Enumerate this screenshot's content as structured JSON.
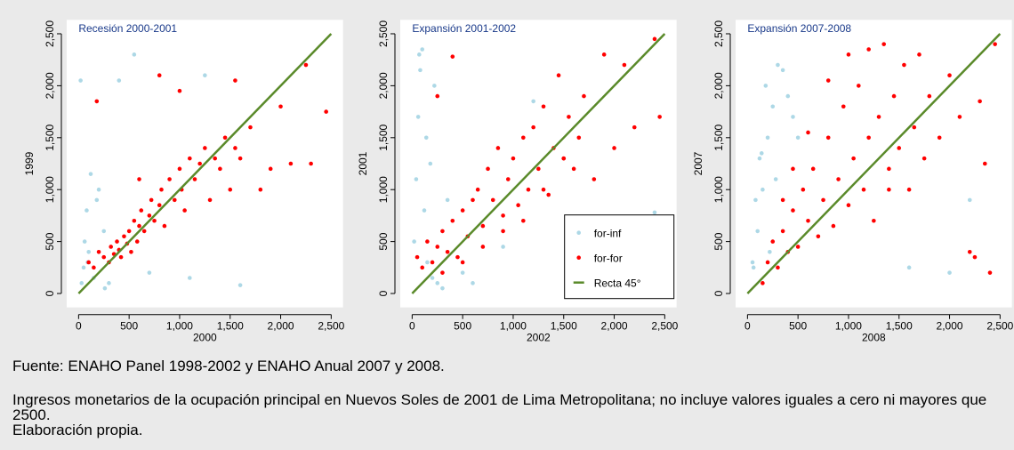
{
  "chart_data": [
    {
      "type": "scatter",
      "title": "Recesión 2000-2001",
      "xlabel": "2000",
      "ylabel": "1999",
      "xlim": [
        -100,
        2600
      ],
      "ylim": [
        -100,
        2600
      ],
      "xticks": [
        0,
        500,
        {
          "value": 1000,
          "label": "1,000"
        },
        {
          "value": 1500,
          "label": "1,500"
        },
        {
          "value": 2000,
          "label": "2,000"
        },
        {
          "value": 2500,
          "label": "2,500"
        }
      ],
      "yticks": [
        0,
        500,
        {
          "value": 1000,
          "label": "1,000"
        },
        {
          "value": 1500,
          "label": "1,500"
        },
        {
          "value": 2000,
          "label": "2,000"
        },
        {
          "value": 2500,
          "label": "2,500"
        }
      ],
      "series": [
        {
          "color": "#add8e6",
          "mode": "markers",
          "x": [
            20,
            50,
            80,
            100,
            150,
            200,
            250,
            300,
            120,
            60,
            400,
            700,
            1100,
            1600,
            550,
            30,
            180,
            1250,
            90,
            260
          ],
          "y": [
            2050,
            250,
            800,
            400,
            150,
            1000,
            600,
            100,
            1150,
            500,
            2050,
            200,
            150,
            80,
            2300,
            100,
            900,
            2100,
            300,
            50
          ]
        },
        {
          "color": "#ff0000",
          "mode": "markers",
          "x": [
            100,
            150,
            200,
            250,
            300,
            320,
            350,
            380,
            400,
            420,
            450,
            480,
            500,
            520,
            550,
            580,
            600,
            620,
            650,
            700,
            720,
            750,
            800,
            820,
            850,
            900,
            950,
            1000,
            1020,
            1050,
            1100,
            1150,
            1200,
            1250,
            1300,
            1350,
            1400,
            1450,
            1500,
            1550,
            1600,
            1700,
            1800,
            1900,
            2000,
            2100,
            2250,
            2300,
            2450,
            180,
            1550,
            1000,
            800,
            600
          ],
          "y": [
            300,
            250,
            400,
            350,
            300,
            450,
            380,
            500,
            420,
            350,
            550,
            480,
            600,
            400,
            700,
            500,
            650,
            800,
            600,
            750,
            900,
            700,
            850,
            1000,
            650,
            1100,
            900,
            1200,
            1000,
            800,
            1300,
            1100,
            1250,
            1400,
            900,
            1300,
            1200,
            1500,
            1000,
            1400,
            1300,
            1600,
            1000,
            1200,
            1800,
            1250,
            2200,
            1250,
            1750,
            1850,
            2050,
            1950,
            2100,
            1100
          ]
        },
        {
          "color": "#5a8a2a",
          "mode": "line",
          "x": [
            0,
            2500
          ],
          "y": [
            0,
            2500
          ]
        }
      ]
    },
    {
      "type": "scatter",
      "title": "Expansión 2001-2002",
      "xlabel": "2002",
      "ylabel": "2001",
      "xlim": [
        -100,
        2600
      ],
      "ylim": [
        -100,
        2600
      ],
      "legend": "lower right",
      "xticks": [
        0,
        500,
        {
          "value": 1000,
          "label": "1,000"
        },
        {
          "value": 1500,
          "label": "1,500"
        },
        {
          "value": 2000,
          "label": "2,000"
        },
        {
          "value": 2500,
          "label": "2,500"
        }
      ],
      "yticks": [
        0,
        500,
        {
          "value": 1000,
          "label": "1,000"
        },
        {
          "value": 1500,
          "label": "1,500"
        },
        {
          "value": 2000,
          "label": "2,000"
        },
        {
          "value": 2500,
          "label": "2,500"
        }
      ],
      "series": [
        {
          "name": "for-inf",
          "color": "#add8e6",
          "mode": "markers",
          "x": [
            20,
            60,
            100,
            150,
            200,
            250,
            80,
            120,
            300,
            350,
            40,
            180,
            600,
            900,
            2400,
            140,
            220,
            1200,
            500,
            70
          ],
          "y": [
            500,
            1700,
            2350,
            300,
            150,
            100,
            2150,
            800,
            50,
            900,
            1100,
            1250,
            100,
            450,
            780,
            1500,
            2000,
            1850,
            200,
            2300
          ]
        },
        {
          "name": "for-for",
          "color": "#ff0000",
          "mode": "markers",
          "x": [
            50,
            100,
            150,
            200,
            250,
            300,
            350,
            400,
            450,
            500,
            550,
            600,
            650,
            700,
            750,
            800,
            850,
            900,
            950,
            1000,
            1050,
            1100,
            1150,
            1200,
            1250,
            1300,
            1350,
            1400,
            1450,
            1500,
            1550,
            1600,
            1650,
            1700,
            1800,
            1900,
            2000,
            2100,
            2200,
            2400,
            2450,
            300,
            500,
            700,
            900,
            1100,
            1300,
            1500,
            250,
            400
          ],
          "y": [
            350,
            250,
            500,
            300,
            450,
            600,
            400,
            700,
            350,
            800,
            550,
            900,
            1000,
            650,
            1200,
            900,
            1400,
            750,
            1100,
            1300,
            850,
            1500,
            1000,
            1600,
            1200,
            1800,
            950,
            1400,
            2100,
            1300,
            1700,
            1200,
            1500,
            1900,
            1100,
            2300,
            1400,
            2200,
            1600,
            2450,
            1700,
            200,
            300,
            450,
            600,
            700,
            1000,
            1300,
            1900,
            2280
          ]
        },
        {
          "name": "Recta 45°",
          "color": "#5a8a2a",
          "mode": "line",
          "x": [
            0,
            2500
          ],
          "y": [
            0,
            2500
          ]
        }
      ]
    },
    {
      "type": "scatter",
      "title": "Expansión 2007-2008",
      "xlabel": "2008",
      "ylabel": "2007",
      "xlim": [
        -100,
        2600
      ],
      "ylim": [
        -100,
        2600
      ],
      "xticks": [
        0,
        500,
        {
          "value": 1000,
          "label": "1,000"
        },
        {
          "value": 1500,
          "label": "1,500"
        },
        {
          "value": 2000,
          "label": "2,000"
        },
        {
          "value": 2500,
          "label": "2,500"
        }
      ],
      "yticks": [
        0,
        500,
        {
          "value": 1000,
          "label": "1,000"
        },
        {
          "value": 1500,
          "label": "1,500"
        },
        {
          "value": 2000,
          "label": "2,000"
        },
        {
          "value": 2500,
          "label": "2,500"
        }
      ],
      "series": [
        {
          "color": "#add8e6",
          "mode": "markers",
          "x": [
            50,
            100,
            150,
            200,
            250,
            300,
            350,
            400,
            450,
            80,
            120,
            180,
            220,
            280,
            1600,
            2000,
            2200,
            500,
            60,
            140
          ],
          "y": [
            300,
            600,
            1000,
            1500,
            1800,
            2200,
            2150,
            1900,
            1700,
            900,
            1300,
            2000,
            400,
            1100,
            250,
            200,
            900,
            1500,
            250,
            1350
          ]
        },
        {
          "color": "#ff0000",
          "mode": "markers",
          "x": [
            150,
            200,
            250,
            300,
            350,
            400,
            450,
            500,
            550,
            600,
            650,
            700,
            750,
            800,
            850,
            900,
            950,
            1000,
            1050,
            1100,
            1150,
            1200,
            1250,
            1300,
            1350,
            1400,
            1450,
            1500,
            1550,
            1600,
            1650,
            1700,
            1750,
            1800,
            1900,
            2000,
            2100,
            2200,
            2300,
            2400,
            2450,
            350,
            450,
            600,
            800,
            1000,
            1200,
            1400,
            2350,
            2250
          ],
          "y": [
            100,
            300,
            500,
            250,
            600,
            400,
            800,
            450,
            1000,
            700,
            1200,
            550,
            900,
            1500,
            650,
            1100,
            1800,
            850,
            1300,
            2000,
            1000,
            1500,
            700,
            1700,
            2400,
            1200,
            1900,
            1400,
            2200,
            1000,
            1600,
            2300,
            1300,
            1900,
            1500,
            2100,
            1700,
            400,
            1850,
            200,
            2400,
            900,
            1200,
            1550,
            2050,
            2300,
            2350,
            1000,
            1250,
            350
          ]
        },
        {
          "color": "#5a8a2a",
          "mode": "line",
          "x": [
            0,
            2500
          ],
          "y": [
            0,
            2500
          ]
        }
      ]
    }
  ],
  "notes": [
    "Fuente: ENAHO Panel 1998-2002 y ENAHO Anual 2007 y 2008.",
    "Ingresos monetarios de la ocupación principal en Nuevos Soles de 2001 de Lima Metropolitana; no incluye valores iguales a cero ni mayores que 2500.",
    "Elaboración propia."
  ]
}
